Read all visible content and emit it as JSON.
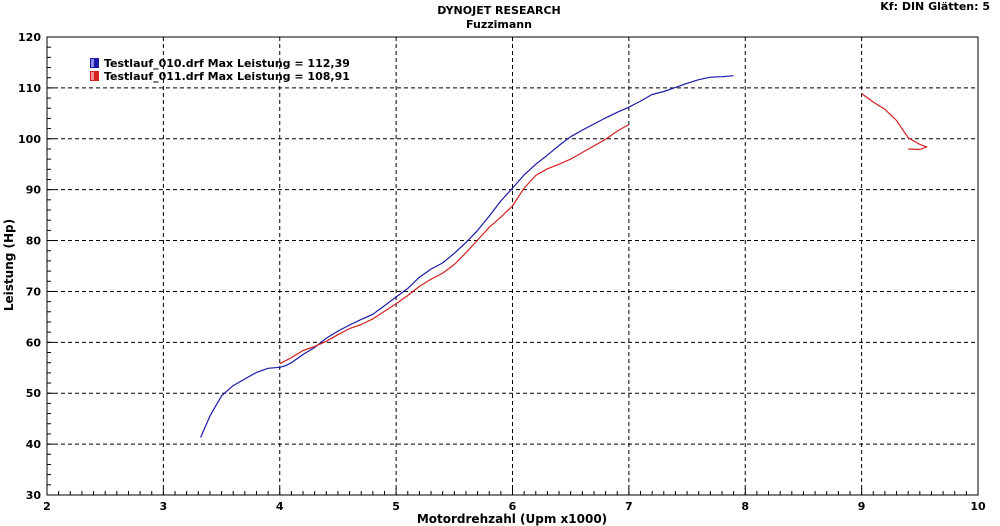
{
  "chart_data": {
    "type": "line",
    "title": "DYNOJET RESEARCH",
    "subtitle": "Fuzzimann",
    "corner_info": "Kf: DIN  Glätten: 5",
    "xlabel": "Motordrehzahl (Upm x1000)",
    "ylabel": "Leistung (Hp)",
    "xlim": [
      2,
      10
    ],
    "ylim": [
      30,
      120
    ],
    "x_ticks": [
      "2",
      "3",
      "4",
      "5",
      "6",
      "7",
      "8",
      "9",
      "10"
    ],
    "y_ticks": [
      "30",
      "40",
      "50",
      "60",
      "70",
      "80",
      "90",
      "100",
      "110",
      "120"
    ],
    "grid": true,
    "legend_position": "top-left",
    "series": [
      {
        "name": "Testlauf_010.drf Max Leistung = 112,39",
        "color": "#1a1aa8",
        "x": [
          3.32,
          3.4,
          3.5,
          3.6,
          3.7,
          3.8,
          3.9,
          4.0,
          4.05,
          4.1,
          4.2,
          4.3,
          4.4,
          4.5,
          4.6,
          4.7,
          4.8,
          4.9,
          5.0,
          5.1,
          5.2,
          5.3,
          5.4,
          5.5,
          5.6,
          5.7,
          5.8,
          5.9,
          6.0,
          6.1,
          6.2,
          6.3,
          6.4,
          6.5,
          6.6,
          6.7,
          6.8,
          6.9,
          7.0,
          7.1,
          7.2,
          7.3,
          7.4,
          7.5,
          7.6,
          7.7,
          7.8,
          7.9
        ],
        "y": [
          41.3,
          45.5,
          49.5,
          51.5,
          52.8,
          54.1,
          54.9,
          55.1,
          55.4,
          56.0,
          57.6,
          59.0,
          60.8,
          62.2,
          63.4,
          64.5,
          65.5,
          67.2,
          68.9,
          70.6,
          72.8,
          74.4,
          75.6,
          77.5,
          79.6,
          82.0,
          84.8,
          87.8,
          90.3,
          92.9,
          95.0,
          96.8,
          98.7,
          100.4,
          101.7,
          102.9,
          104.1,
          105.2,
          106.2,
          107.4,
          108.7,
          109.3,
          110.1,
          110.9,
          111.6,
          112.1,
          112.2,
          112.4
        ]
      },
      {
        "name": "Testlauf_011.drf Max Leistung = 108,91",
        "color": "#d42020",
        "x": [
          4.0,
          4.1,
          4.2,
          4.3,
          4.4,
          4.5,
          4.6,
          4.7,
          4.8,
          4.9,
          5.0,
          5.1,
          5.2,
          5.3,
          5.4,
          5.5,
          5.6,
          5.7,
          5.8,
          5.9,
          6.0,
          6.1,
          6.2,
          6.3,
          6.4,
          6.5,
          6.6,
          6.7,
          6.8,
          6.9,
          7.0
        ],
        "y": [
          55.8,
          57.0,
          58.4,
          59.2,
          60.2,
          61.5,
          62.7,
          63.5,
          64.6,
          66.1,
          67.6,
          69.2,
          71.0,
          72.4,
          73.6,
          75.3,
          77.6,
          80.1,
          82.6,
          84.6,
          86.8,
          90.3,
          92.8,
          94.1,
          95.0,
          96.0,
          97.3,
          98.6,
          99.9,
          101.5,
          102.8
        ]
      },
      {
        "name": "",
        "color": "#d42020",
        "x": [
          9.0,
          9.1,
          9.2,
          9.3,
          9.4,
          9.5,
          9.56,
          9.5,
          9.4
        ],
        "y": [
          108.9,
          107.2,
          105.8,
          103.6,
          100.2,
          98.9,
          98.4,
          97.9,
          98.0
        ]
      }
    ]
  }
}
